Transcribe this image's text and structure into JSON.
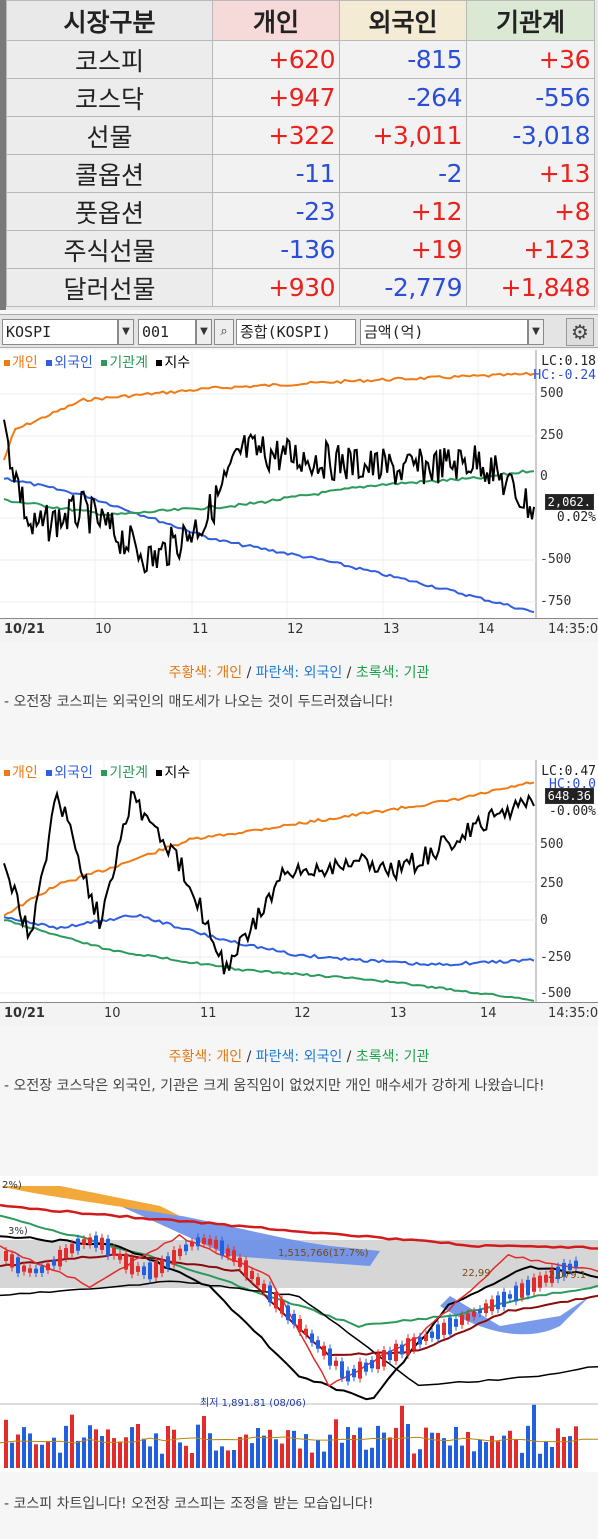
{
  "investor_table": {
    "headers": [
      "시장구분",
      "개인",
      "외국인",
      "기관계"
    ],
    "rows": [
      {
        "market": "코스피",
        "individual": "+620",
        "foreign": "-815",
        "institution": "+36"
      },
      {
        "market": "코스닥",
        "individual": "+947",
        "foreign": "-264",
        "institution": "-556"
      },
      {
        "market": "선물",
        "individual": "+322",
        "foreign": "+3,011",
        "institution": "-3,018"
      },
      {
        "market": "콜옵션",
        "individual": "-11",
        "foreign": "-2",
        "institution": "+13"
      },
      {
        "market": "풋옵션",
        "individual": "-23",
        "foreign": "+12",
        "institution": "+8"
      },
      {
        "market": "주식선물",
        "individual": "-136",
        "foreign": "+19",
        "institution": "+123"
      },
      {
        "market": "달러선물",
        "individual": "+930",
        "foreign": "-2,779",
        "institution": "+1,848"
      }
    ],
    "colors": {
      "positive": "#e8221d",
      "negative": "#2a4fd6"
    }
  },
  "toolbar": {
    "market_select": "KOSPI",
    "code_select": "001",
    "search_value": "종합(KOSPI)",
    "unit_select": "금액(억)",
    "settings_icon": "gear-icon",
    "search_icon": "search-icon"
  },
  "chart1": {
    "legend": [
      "개인",
      "외국인",
      "기관계",
      "지수"
    ],
    "legend_colors": [
      "#f07a14",
      "#2f5fe0",
      "#2c9a5a",
      "#000000"
    ],
    "lc": "LC:0.18",
    "hc": "HC:-0.24",
    "y_ticks": [
      "500",
      "250",
      "0",
      "-250",
      "-500",
      "-750"
    ],
    "value_box": "2,062.",
    "pct": "0.02%",
    "x_ticks": [
      "10/21",
      "10",
      "11",
      "12",
      "13",
      "14"
    ],
    "time": "14:35:0"
  },
  "caption1": {
    "orange": "주황색: 개인",
    "blue": "파란색: 외국인",
    "green": "초록색: 기관",
    "sep": " / ",
    "text": "- 오전장 코스피는 외국인의 매도세가 나오는 것이 두드러졌습니다!"
  },
  "chart2": {
    "legend": [
      "개인",
      "외국인",
      "기관계",
      "지수"
    ],
    "legend_colors": [
      "#f07a14",
      "#2f5fe0",
      "#2c9a5a",
      "#000000"
    ],
    "lc": "LC:0.47",
    "hc": "HC:0.0",
    "y_ticks": [
      "500",
      "250",
      "0",
      "-250",
      "-500"
    ],
    "value_box": "648.36",
    "pct": "-0.00%",
    "x_ticks": [
      "10/21",
      "10",
      "11",
      "12",
      "13",
      "14"
    ],
    "time": "14:35:0"
  },
  "caption2": {
    "orange": "주황색: 개인",
    "blue": "파란색: 외국인",
    "green": "초록색: 기관",
    "sep": " / ",
    "text": "- 오전장 코스닥은 외국인, 기관은 크게 움직임이 없었지만 개인 매수세가 강하게 나왔습니다!"
  },
  "candle_chart": {
    "labels": {
      "left_pct": "2%)",
      "left_pct2": "3%)",
      "mid_price": "1,515,766(17.7%)",
      "right_price": "22,99",
      "right_price2": "2,079.1",
      "low_label": "최저 1,891.81 (08/06)"
    }
  },
  "caption3": {
    "text": "- 코스피 차트입니다! 오전장 코스피는 조정을 받는 모습입니다!"
  }
}
